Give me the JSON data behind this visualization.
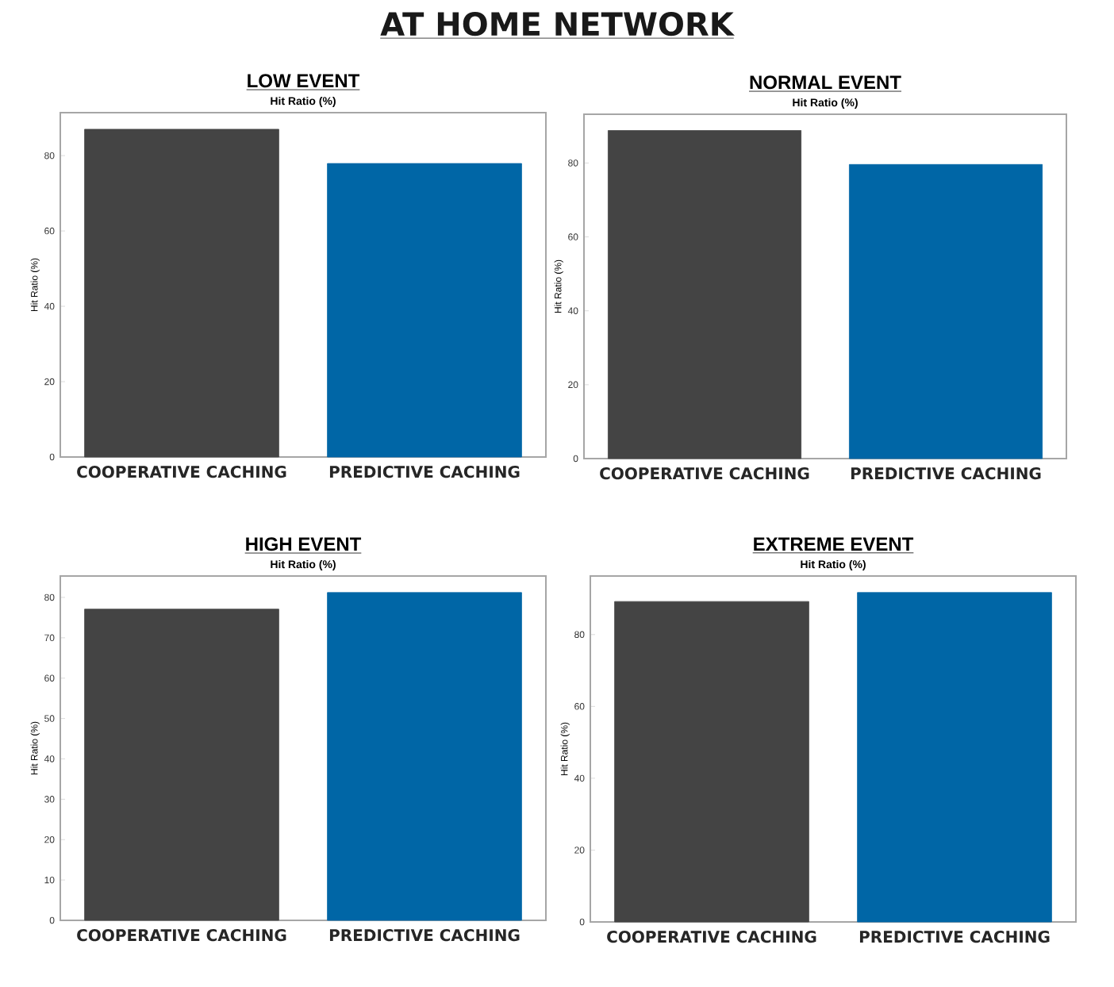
{
  "chart_data": [
    {
      "type": "bar",
      "title": "LOW EVENT",
      "subtitle": "Hit Ratio (%)",
      "ylabel": "Hit Ratio (%)",
      "annotations": [
        "AT HOME NETWORK"
      ],
      "categories": [
        "COOPERATIVE CACHING",
        "PREDICTIVE CACHING"
      ],
      "values": [
        87.0,
        77.9
      ],
      "colors": [
        "#444444",
        "#0066a6"
      ],
      "ylim": [
        0,
        91.4
      ],
      "yticks": [
        0,
        20,
        40,
        60,
        80
      ]
    },
    {
      "type": "bar",
      "title": "NORMAL EVENT",
      "subtitle": "Hit Ratio (%)",
      "ylabel": "Hit Ratio (%)",
      "categories": [
        "COOPERATIVE CACHING",
        "PREDICTIVE CACHING"
      ],
      "values": [
        88.8,
        79.6
      ],
      "colors": [
        "#444444",
        "#0066a6"
      ],
      "ylim": [
        0,
        93.2
      ],
      "yticks": [
        0,
        20,
        40,
        60,
        80
      ]
    },
    {
      "type": "bar",
      "title": "HIGH EVENT",
      "subtitle": "Hit Ratio (%)",
      "ylabel": "Hit Ratio (%)",
      "categories": [
        "COOPERATIVE CACHING",
        "PREDICTIVE CACHING"
      ],
      "values": [
        77.1,
        81.2
      ],
      "colors": [
        "#444444",
        "#0066a6"
      ],
      "ylim": [
        0,
        85.3
      ],
      "yticks": [
        0,
        10,
        20,
        30,
        40,
        50,
        60,
        70,
        80
      ]
    },
    {
      "type": "bar",
      "title": "EXTREME EVENT",
      "subtitle": "Hit Ratio (%)",
      "ylabel": "Hit Ratio (%)",
      "categories": [
        "COOPERATIVE CACHING",
        "PREDICTIVE CACHING"
      ],
      "values": [
        89.2,
        91.7
      ],
      "colors": [
        "#444444",
        "#0066a6"
      ],
      "ylim": [
        0,
        96.3
      ],
      "yticks": [
        0,
        20,
        40,
        60,
        80
      ]
    }
  ]
}
